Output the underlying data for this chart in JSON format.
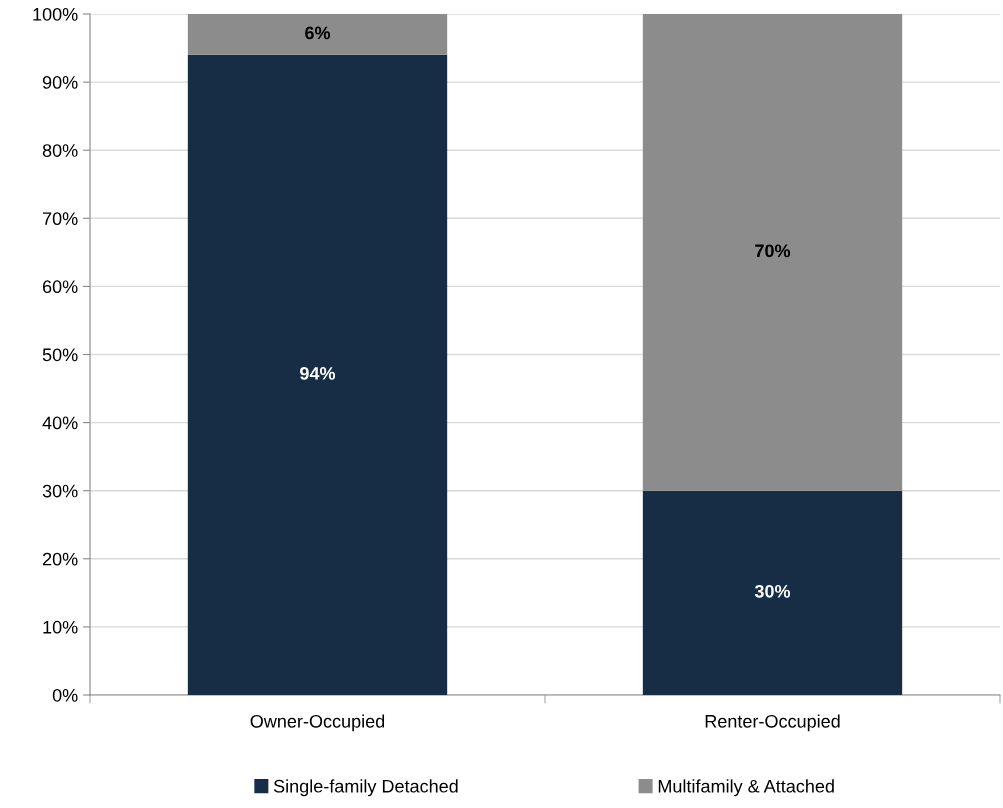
{
  "chart_data": {
    "type": "bar",
    "stacked": true,
    "categories": [
      "Owner-Occupied",
      "Renter-Occupied"
    ],
    "series": [
      {
        "name": "Single-family Detached",
        "color": "#172d46",
        "values": [
          94,
          30
        ],
        "value_labels": [
          "94%",
          "30%"
        ]
      },
      {
        "name": "Multifamily & Attached",
        "color": "#8c8c8c",
        "values": [
          6,
          70
        ],
        "value_labels": [
          "6%",
          "70%"
        ]
      }
    ],
    "ylim": [
      0,
      100
    ],
    "yticks": [
      {
        "value": 0,
        "label": "0%"
      },
      {
        "value": 10,
        "label": "10%"
      },
      {
        "value": 20,
        "label": "20%"
      },
      {
        "value": 30,
        "label": "30%"
      },
      {
        "value": 40,
        "label": "40%"
      },
      {
        "value": 50,
        "label": "50%"
      },
      {
        "value": 60,
        "label": "60%"
      },
      {
        "value": 70,
        "label": "70%"
      },
      {
        "value": 80,
        "label": "80%"
      },
      {
        "value": 90,
        "label": "90%"
      },
      {
        "value": 100,
        "label": "100%"
      }
    ],
    "grid": "y",
    "legend": "bottom"
  }
}
